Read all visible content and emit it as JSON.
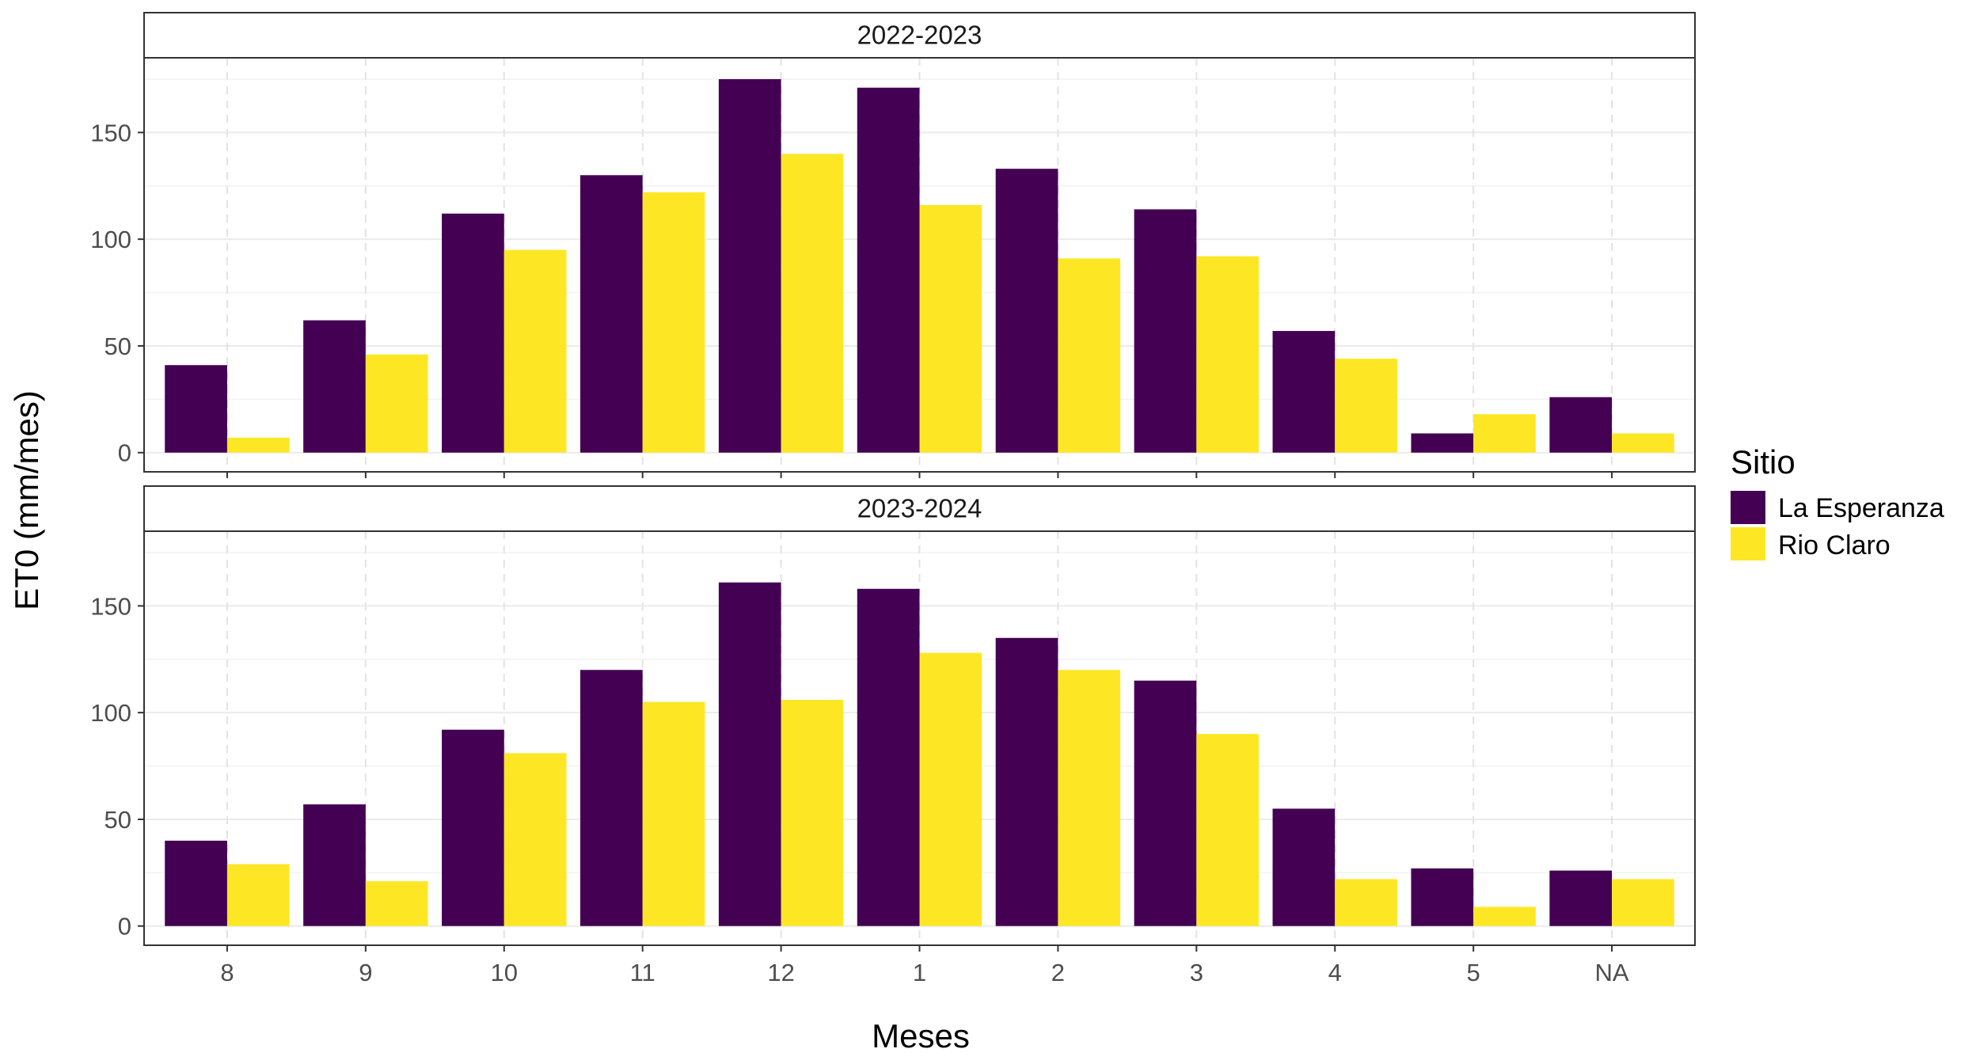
{
  "chart_data": {
    "type": "bar",
    "xlabel": "Meses",
    "ylabel": "ET0 (mm/mes)",
    "categories": [
      "8",
      "9",
      "10",
      "11",
      "12",
      "1",
      "2",
      "3",
      "4",
      "5",
      "NA"
    ],
    "ylim": [
      -9,
      185
    ],
    "yticks": [
      0,
      50,
      100,
      150
    ],
    "grid": true,
    "legend": {
      "title": "Sitio",
      "position": "right",
      "entries": [
        {
          "name": "La Esperanza",
          "color": "#440154"
        },
        {
          "name": "Rio Claro",
          "color": "#FDE725"
        }
      ]
    },
    "panels": [
      {
        "strip": "2022-2023",
        "series": [
          {
            "name": "La Esperanza",
            "color": "#440154",
            "values": [
              41,
              62,
              112,
              130,
              175,
              171,
              133,
              114,
              57,
              9,
              26
            ]
          },
          {
            "name": "Rio Claro",
            "color": "#FDE725",
            "values": [
              7,
              46,
              95,
              122,
              140,
              116,
              91,
              92,
              44,
              18,
              9
            ]
          }
        ]
      },
      {
        "strip": "2023-2024",
        "series": [
          {
            "name": "La Esperanza",
            "color": "#440154",
            "values": [
              40,
              57,
              92,
              120,
              161,
              158,
              135,
              115,
              55,
              27,
              26
            ]
          },
          {
            "name": "Rio Claro",
            "color": "#FDE725",
            "values": [
              29,
              21,
              81,
              105,
              106,
              128,
              120,
              90,
              22,
              9,
              22
            ]
          }
        ]
      }
    ]
  }
}
